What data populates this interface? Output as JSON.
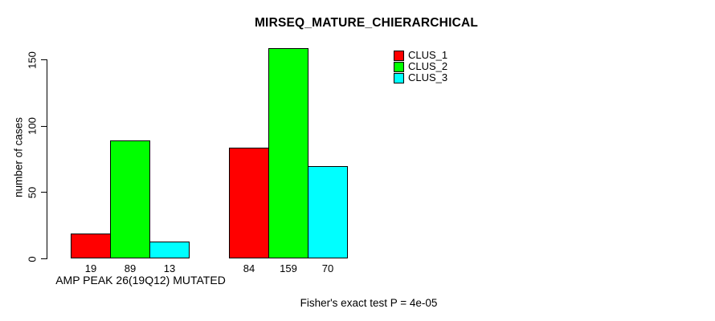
{
  "page": {
    "title": "MIRSEQ_MATURE_CHIERARCHICAL",
    "footer_note": "Fisher's exact test P = 4e-05"
  },
  "chart_data": {
    "type": "bar",
    "title": "MIRSEQ_MATURE_CHIERARCHICAL",
    "ylabel": "number of cases",
    "xlabel": "",
    "categories": [
      "AMP PEAK 26(19Q12) MUTATED",
      ""
    ],
    "series": [
      {
        "name": "CLUS_1",
        "color": "#ff0000",
        "values": [
          19,
          84
        ]
      },
      {
        "name": "CLUS_2",
        "color": "#00ff00",
        "values": [
          89,
          159
        ]
      },
      {
        "name": "CLUS_3",
        "color": "#00ffff",
        "values": [
          13,
          70
        ]
      }
    ],
    "yticks": [
      0,
      50,
      100,
      150
    ],
    "ylim": [
      0,
      165
    ],
    "grid": false,
    "bar_value_labels_shown": true,
    "legend_position": "top-right",
    "annotation": "Fisher's exact test P = 4e-05"
  },
  "colors": {
    "background": "#ffffff",
    "axis": "#000000",
    "text": "#000000",
    "clus_1": "#ff0000",
    "clus_2": "#00ff00",
    "clus_3": "#00ffff"
  }
}
